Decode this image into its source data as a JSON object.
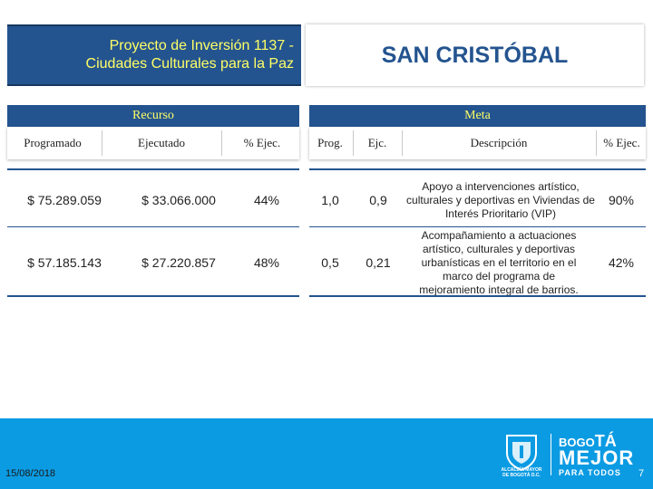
{
  "title": {
    "line1": "Proyecto de Inversión 1137 -",
    "line2": "Ciudades Culturales para la Paz"
  },
  "location": "SAN CRISTÓBAL",
  "sections": {
    "recurso": "Recurso",
    "meta": "Meta"
  },
  "headers": {
    "programado": "Programado",
    "ejecutado": "Ejecutado",
    "pct_ejec_recurso": "% Ejec.",
    "prog": "Prog.",
    "ejc": "Ejc.",
    "descripcion": "Descripción",
    "pct_ejec_meta": "% Ejec."
  },
  "rows": [
    {
      "programado": "$ 75.289.059",
      "ejecutado": "$ 33.066.000",
      "pct_recurso": "44%",
      "prog": "1,0",
      "ejc": "0,9",
      "descripcion": "Apoyo a intervenciones artístico, culturales y deportivas en Viviendas de Interés Prioritario (VIP)",
      "pct_meta": "90%"
    },
    {
      "programado": "$ 57.185.143",
      "ejecutado": "$ 27.220.857",
      "pct_recurso": "48%",
      "prog": "0,5",
      "ejc": "0,21",
      "descripcion": "Acompañamiento a actuaciones artístico, culturales y deportivas urbanísticas en el territorio en el marco del programa de mejoramiento integral de barrios.",
      "pct_meta": "42%"
    }
  ],
  "footer": {
    "date": "15/08/2018",
    "page": "7",
    "logo_left_line1": "ALCALDÍA MAYOR",
    "logo_left_line2": "DE BOGOTÁ D.C.",
    "logo_l1a": "BOGO",
    "logo_l1b": "TÁ",
    "logo_l2": "MEJOR",
    "logo_l3": "PARA TODOS"
  },
  "colors": {
    "primary": "#24548f",
    "title_text": "#ffff66",
    "footer": "#0b9be3"
  }
}
